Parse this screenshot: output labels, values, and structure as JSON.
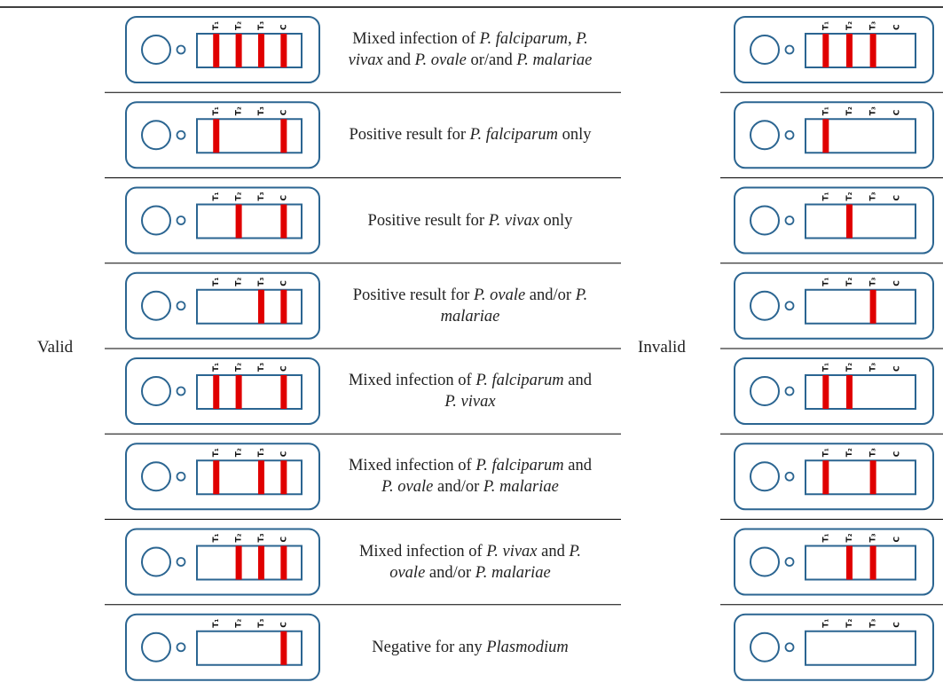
{
  "strip_labels": [
    "T₁",
    "T₂",
    "T₃",
    "C"
  ],
  "valid": {
    "label": "Valid",
    "rows": [
      {
        "bands": [
          1,
          1,
          1,
          1
        ],
        "description": [
          {
            "text": "Mixed infection of "
          },
          {
            "text": "P. falciparum",
            "italic": true
          },
          {
            "text": ", "
          },
          {
            "text": "P. vivax",
            "italic": true
          },
          {
            "text": " and "
          },
          {
            "text": "P. ovale",
            "italic": true
          },
          {
            "text": " or/and "
          },
          {
            "text": "P. malariae",
            "italic": true
          }
        ]
      },
      {
        "bands": [
          1,
          0,
          0,
          1
        ],
        "description": [
          {
            "text": "Positive result for "
          },
          {
            "text": "P. falciparum",
            "italic": true
          },
          {
            "text": " only"
          }
        ]
      },
      {
        "bands": [
          0,
          1,
          0,
          1
        ],
        "description": [
          {
            "text": "Positive result for "
          },
          {
            "text": "P. vivax",
            "italic": true
          },
          {
            "text": " only"
          }
        ]
      },
      {
        "bands": [
          0,
          0,
          1,
          1
        ],
        "description": [
          {
            "text": "Positive result for "
          },
          {
            "text": "P. ovale",
            "italic": true
          },
          {
            "text": " and/or "
          },
          {
            "text": "P. malariae",
            "italic": true
          }
        ]
      },
      {
        "bands": [
          1,
          1,
          0,
          1
        ],
        "description": [
          {
            "text": "Mixed infection of "
          },
          {
            "text": "P. falciparum",
            "italic": true
          },
          {
            "text": " and "
          },
          {
            "text": "P. vivax",
            "italic": true
          }
        ]
      },
      {
        "bands": [
          1,
          0,
          1,
          1
        ],
        "description": [
          {
            "text": "Mixed infection of "
          },
          {
            "text": "P. falciparum",
            "italic": true
          },
          {
            "text": " and "
          },
          {
            "text": "P. ovale",
            "italic": true
          },
          {
            "text": " and/or "
          },
          {
            "text": "P. malariae",
            "italic": true
          }
        ]
      },
      {
        "bands": [
          0,
          1,
          1,
          1
        ],
        "description": [
          {
            "text": "Mixed infection of "
          },
          {
            "text": "P. vivax",
            "italic": true
          },
          {
            "text": " and "
          },
          {
            "text": "P. ovale",
            "italic": true
          },
          {
            "text": " and/or "
          },
          {
            "text": "P. malariae",
            "italic": true
          }
        ]
      },
      {
        "bands": [
          0,
          0,
          0,
          1
        ],
        "description": [
          {
            "text": "Negative for any "
          },
          {
            "text": "Plasmodium",
            "italic": true
          }
        ]
      }
    ]
  },
  "invalid": {
    "label": "Invalid",
    "rows": [
      {
        "bands": [
          1,
          1,
          1,
          0
        ]
      },
      {
        "bands": [
          1,
          0,
          0,
          0
        ]
      },
      {
        "bands": [
          0,
          1,
          0,
          0
        ]
      },
      {
        "bands": [
          0,
          0,
          1,
          0
        ]
      },
      {
        "bands": [
          1,
          1,
          0,
          0
        ]
      },
      {
        "bands": [
          1,
          0,
          1,
          0
        ]
      },
      {
        "bands": [
          0,
          1,
          1,
          0
        ]
      },
      {
        "bands": [
          0,
          0,
          0,
          0
        ]
      }
    ]
  }
}
